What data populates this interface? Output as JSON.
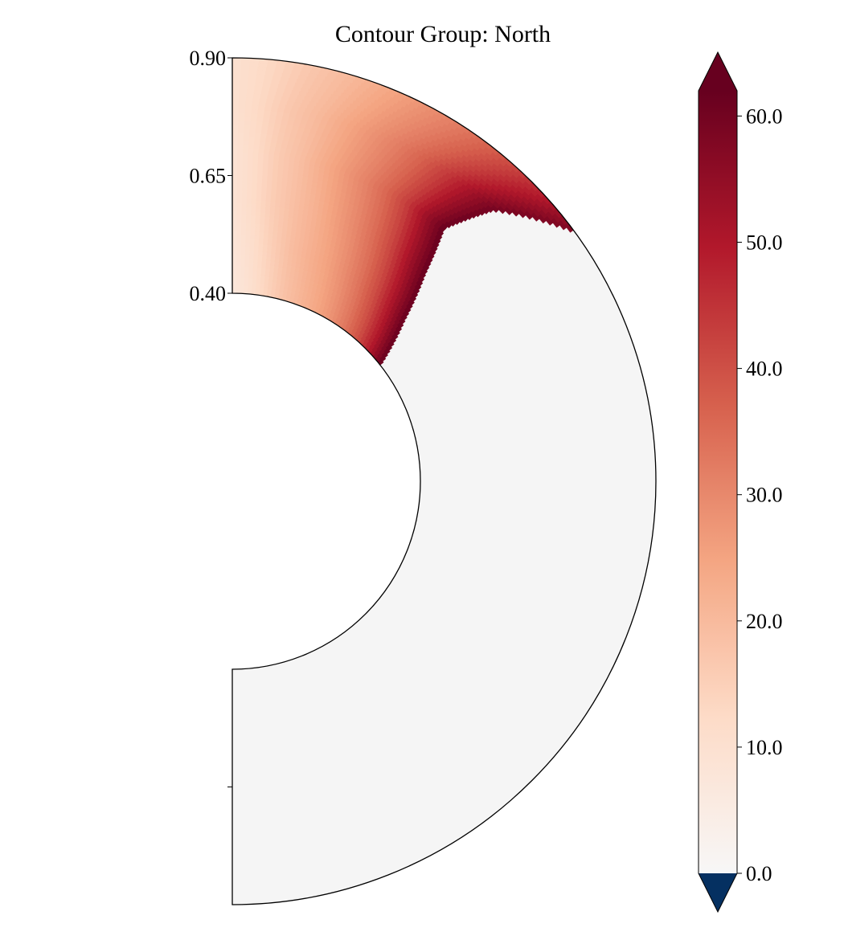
{
  "chart_data": {
    "type": "heatmap",
    "subtype": "meridional-half-annulus",
    "title": "Contour Group: North",
    "radial_axis": {
      "inner_radius": 0.4,
      "outer_radius": 0.9,
      "tick_labels": [
        "0.90",
        "0.65",
        "0.40"
      ]
    },
    "colorbar": {
      "colormap": "RdBu_r",
      "min": 0.0,
      "max": 62.0,
      "extend": "both",
      "tick_values": [
        0,
        10,
        20,
        30,
        40,
        50,
        60
      ],
      "tick_labels": [
        "0.0",
        "10.0",
        "20.0",
        "30.0",
        "40.0",
        "50.0",
        "60.0"
      ],
      "over_color": "#67001f",
      "under_color": "#053061"
    },
    "field": {
      "description_free": false,
      "region_polar_angle_deg": [
        0,
        54
      ],
      "outside_value": 0.0,
      "rows": [
        {
          "r": 0.4,
          "edge_angle_deg": 52,
          "values": [
            7,
            10,
            14,
            18,
            21,
            24,
            28,
            33,
            40,
            50,
            62
          ]
        },
        {
          "r": 0.5,
          "edge_angle_deg": 47,
          "values": [
            8,
            11,
            15,
            19,
            22,
            25,
            29,
            34,
            41,
            51,
            62
          ]
        },
        {
          "r": 0.6,
          "edge_angle_deg": 43,
          "values": [
            9,
            12,
            16,
            19,
            22,
            26,
            30,
            35,
            42,
            52,
            62
          ]
        },
        {
          "r": 0.7,
          "edge_angle_deg": 40,
          "values": [
            9,
            12,
            16,
            19,
            23,
            27,
            31,
            36,
            43,
            53,
            62
          ]
        },
        {
          "r": 0.8,
          "edge_angle_deg": 44,
          "values": [
            10,
            13,
            17,
            20,
            24,
            28,
            32,
            37,
            44,
            52,
            60
          ]
        },
        {
          "r": 0.9,
          "edge_angle_deg": 54,
          "values": [
            10,
            13,
            17,
            20,
            24,
            28,
            32,
            37,
            43,
            50,
            58
          ]
        }
      ]
    },
    "colors": {
      "background_fill": "#f5f5f5",
      "outline": "#000000"
    }
  }
}
